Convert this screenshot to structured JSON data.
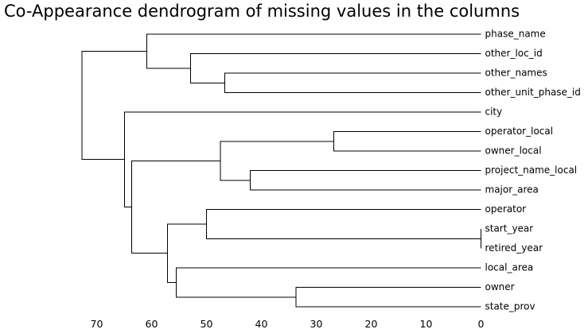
{
  "chart_data": {
    "type": "dendrogram",
    "title": "Co-Appearance dendrogram of missing values in the columns",
    "orientation": "right",
    "xlim": [
      75,
      0
    ],
    "xticks": [
      70,
      60,
      50,
      40,
      30,
      20,
      10,
      0
    ],
    "grid": false,
    "leaves": [
      "phase_name",
      "other_loc_id",
      "other_names",
      "other_unit_phase_id",
      "city",
      "operator_local",
      "owner_local",
      "project_name_local",
      "major_area",
      "operator",
      "start_year",
      "retired_year",
      "local_area",
      "owner",
      "state_prov"
    ],
    "merges": [
      {
        "id": "m1",
        "children": [
          "other_names",
          "other_unit_phase_id"
        ],
        "height": 46.7
      },
      {
        "id": "m2",
        "children": [
          "other_loc_id",
          "m1"
        ],
        "height": 52.9
      },
      {
        "id": "m3",
        "children": [
          "phase_name",
          "m2"
        ],
        "height": 60.9
      },
      {
        "id": "m4",
        "children": [
          "operator_local",
          "owner_local"
        ],
        "height": 26.8
      },
      {
        "id": "m5",
        "children": [
          "project_name_local",
          "major_area"
        ],
        "height": 42.0
      },
      {
        "id": "m6",
        "children": [
          "m4",
          "m5"
        ],
        "height": 47.5
      },
      {
        "id": "m7",
        "children": [
          "start_year",
          "retired_year"
        ],
        "height": 0.0
      },
      {
        "id": "m8",
        "children": [
          "operator",
          "m7"
        ],
        "height": 50.0
      },
      {
        "id": "m9",
        "children": [
          "owner",
          "state_prov"
        ],
        "height": 33.7
      },
      {
        "id": "m10",
        "children": [
          "local_area",
          "m9"
        ],
        "height": 55.5
      },
      {
        "id": "m11",
        "children": [
          "m8",
          "m10"
        ],
        "height": 57.1
      },
      {
        "id": "m12",
        "children": [
          "m6",
          "m11"
        ],
        "height": 63.6
      },
      {
        "id": "m13",
        "children": [
          "city",
          "m12"
        ],
        "height": 64.9
      },
      {
        "id": "m14",
        "children": [
          "m3",
          "m13"
        ],
        "height": 72.7
      }
    ]
  }
}
